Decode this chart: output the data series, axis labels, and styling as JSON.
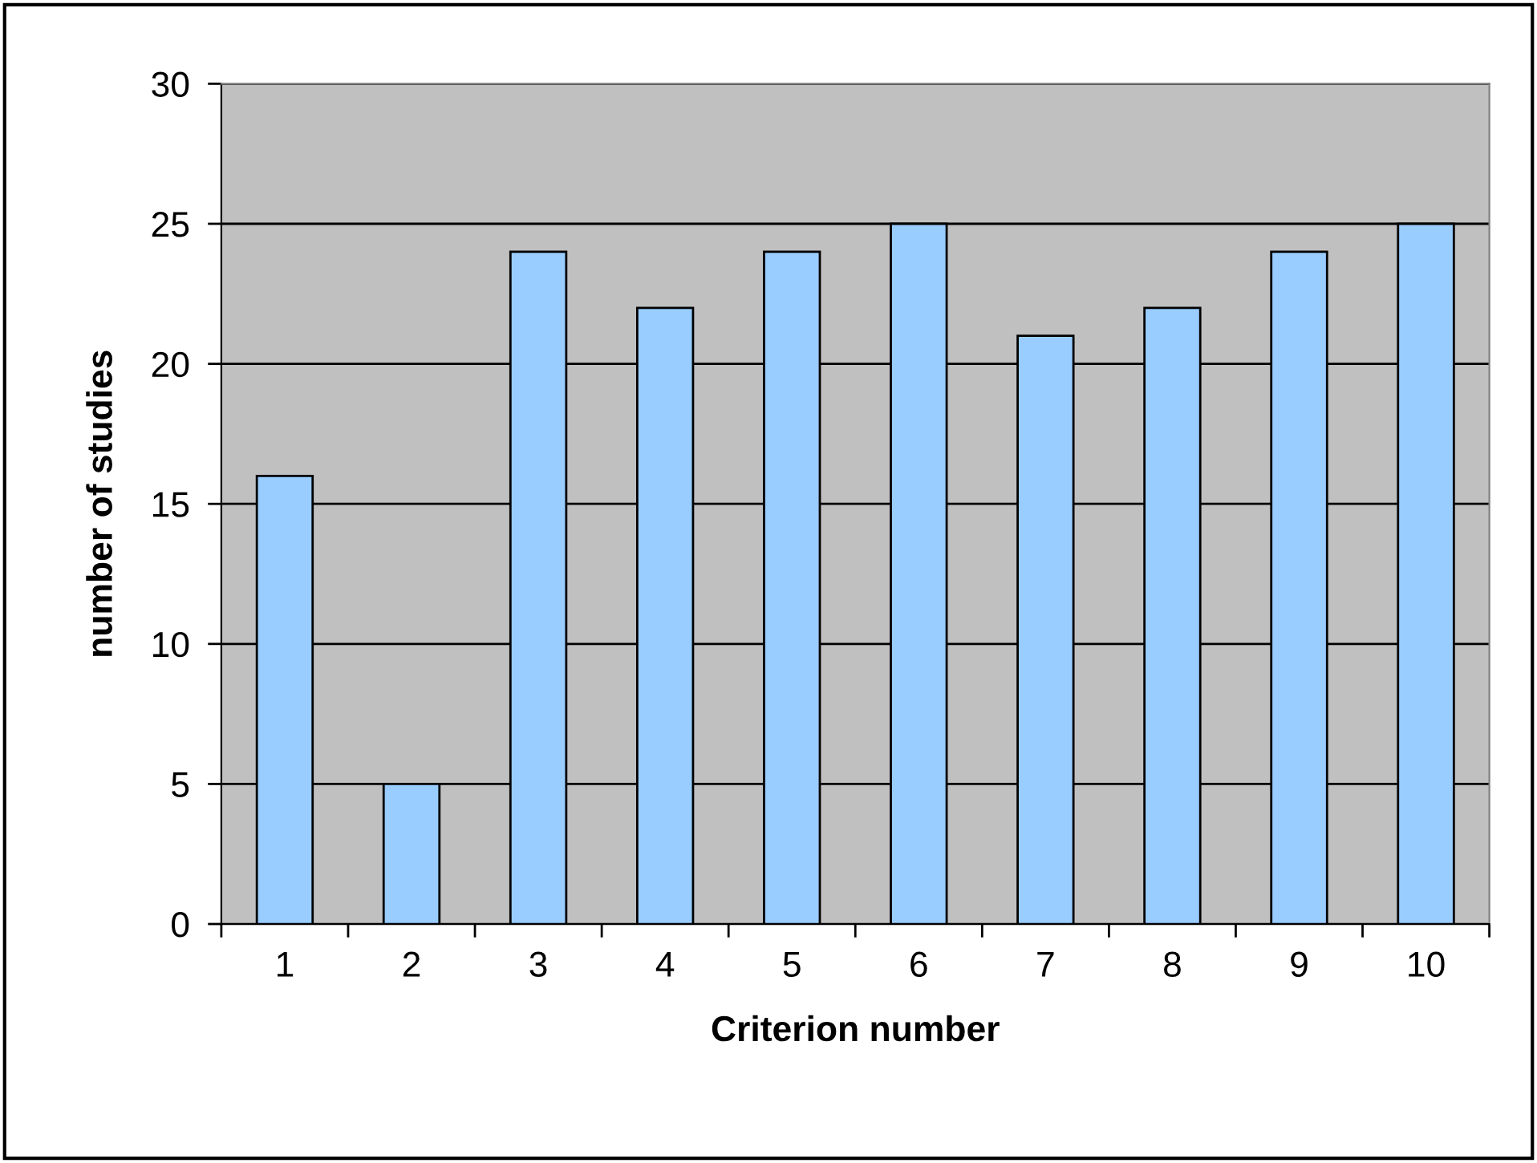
{
  "chart_data": {
    "type": "bar",
    "xlabel": "Criterion number",
    "ylabel": "number of studies",
    "categories": [
      "1",
      "2",
      "3",
      "4",
      "5",
      "6",
      "7",
      "8",
      "9",
      "10"
    ],
    "values": [
      16,
      5,
      24,
      22,
      24,
      25,
      21,
      22,
      24,
      25
    ],
    "color": "#99ccff",
    "ylim": [
      0,
      30
    ],
    "yticks": [
      0,
      5,
      10,
      15,
      20,
      25,
      30
    ],
    "grid": "y",
    "legend": false
  }
}
